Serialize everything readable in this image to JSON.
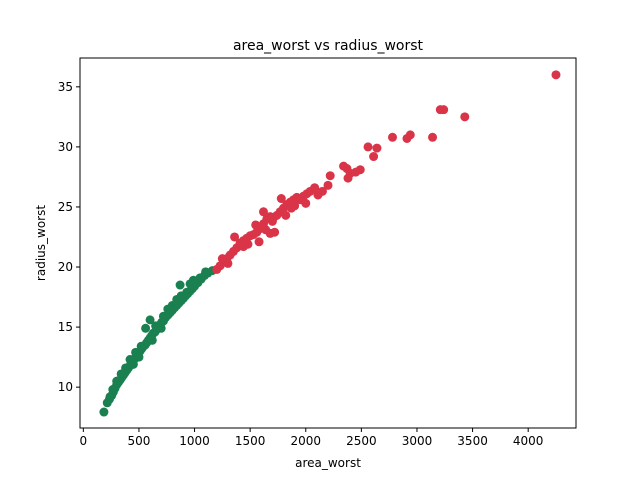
{
  "chart_data": {
    "type": "scatter",
    "title": "area_worst vs radius_worst",
    "xlabel": "area_worst",
    "ylabel": "radius_worst",
    "xlim": [
      -30,
      4430
    ],
    "ylim": [
      6.6,
      37.4
    ],
    "xticks": [
      0,
      500,
      1000,
      1500,
      2000,
      2500,
      3000,
      3500,
      4000
    ],
    "yticks": [
      10,
      15,
      20,
      25,
      30,
      35
    ],
    "grid": false,
    "legend": "none",
    "series": [
      {
        "color": "#1a8050",
        "points": [
          [
            185,
            7.93
          ],
          [
            215,
            8.7
          ],
          [
            235,
            9.0
          ],
          [
            255,
            9.3
          ],
          [
            270,
            9.6
          ],
          [
            285,
            9.9
          ],
          [
            300,
            10.2
          ],
          [
            315,
            10.4
          ],
          [
            330,
            10.6
          ],
          [
            345,
            10.8
          ],
          [
            360,
            11.0
          ],
          [
            375,
            11.2
          ],
          [
            390,
            11.4
          ],
          [
            405,
            11.6
          ],
          [
            420,
            11.8
          ],
          [
            435,
            12.0
          ],
          [
            450,
            12.2
          ],
          [
            465,
            12.4
          ],
          [
            480,
            12.6
          ],
          [
            495,
            12.8
          ],
          [
            510,
            13.0
          ],
          [
            525,
            13.2
          ],
          [
            540,
            13.4
          ],
          [
            555,
            13.5
          ],
          [
            570,
            13.7
          ],
          [
            585,
            13.9
          ],
          [
            600,
            14.1
          ],
          [
            615,
            14.3
          ],
          [
            630,
            14.5
          ],
          [
            645,
            14.6
          ],
          [
            660,
            14.8
          ],
          [
            675,
            15.0
          ],
          [
            690,
            15.2
          ],
          [
            705,
            15.4
          ],
          [
            720,
            15.5
          ],
          [
            740,
            15.8
          ],
          [
            760,
            16.0
          ],
          [
            780,
            16.2
          ],
          [
            800,
            16.4
          ],
          [
            820,
            16.6
          ],
          [
            840,
            16.8
          ],
          [
            860,
            17.0
          ],
          [
            880,
            17.2
          ],
          [
            900,
            17.4
          ],
          [
            920,
            17.6
          ],
          [
            940,
            17.8
          ],
          [
            960,
            18.0
          ],
          [
            980,
            18.2
          ],
          [
            1000,
            18.4
          ],
          [
            1030,
            18.7
          ],
          [
            1060,
            19.0
          ],
          [
            1090,
            19.3
          ],
          [
            1120,
            19.5
          ],
          [
            1160,
            19.7
          ],
          [
            1100,
            19.6
          ],
          [
            1050,
            19.1
          ],
          [
            960,
            18.6
          ],
          [
            880,
            17.6
          ],
          [
            800,
            16.8
          ],
          [
            720,
            15.9
          ],
          [
            650,
            15.1
          ],
          [
            600,
            15.6
          ],
          [
            560,
            14.9
          ],
          [
            520,
            13.4
          ],
          [
            470,
            12.9
          ],
          [
            420,
            12.3
          ],
          [
            380,
            11.6
          ],
          [
            340,
            11.1
          ],
          [
            300,
            10.5
          ],
          [
            265,
            9.8
          ],
          [
            240,
            9.2
          ],
          [
            870,
            18.5
          ],
          [
            930,
            17.9
          ],
          [
            990,
            18.9
          ],
          [
            620,
            13.9
          ],
          [
            700,
            14.9
          ],
          [
            760,
            16.5
          ],
          [
            840,
            17.3
          ],
          [
            500,
            12.5
          ],
          [
            450,
            11.9
          ]
        ]
      },
      {
        "color": "#d93448",
        "points": [
          [
            1200,
            19.8
          ],
          [
            1230,
            20.1
          ],
          [
            1260,
            20.4
          ],
          [
            1290,
            20.7
          ],
          [
            1320,
            21.0
          ],
          [
            1350,
            21.3
          ],
          [
            1380,
            21.6
          ],
          [
            1410,
            22.0
          ],
          [
            1440,
            22.2
          ],
          [
            1470,
            22.4
          ],
          [
            1500,
            22.6
          ],
          [
            1530,
            22.7
          ],
          [
            1560,
            22.9
          ],
          [
            1590,
            23.2
          ],
          [
            1620,
            23.6
          ],
          [
            1650,
            24.0
          ],
          [
            1680,
            24.2
          ],
          [
            1710,
            24.1
          ],
          [
            1740,
            24.3
          ],
          [
            1770,
            24.6
          ],
          [
            1800,
            24.9
          ],
          [
            1830,
            25.2
          ],
          [
            1860,
            25.4
          ],
          [
            1890,
            25.6
          ],
          [
            1920,
            25.8
          ],
          [
            1950,
            25.6
          ],
          [
            1980,
            25.9
          ],
          [
            2010,
            26.1
          ],
          [
            2040,
            26.3
          ],
          [
            2080,
            26.6
          ],
          [
            2110,
            26.0
          ],
          [
            2150,
            26.3
          ],
          [
            2200,
            26.8
          ],
          [
            2220,
            27.6
          ],
          [
            2340,
            28.4
          ],
          [
            2370,
            28.2
          ],
          [
            2400,
            27.8
          ],
          [
            2380,
            27.4
          ],
          [
            2450,
            27.9
          ],
          [
            2490,
            28.1
          ],
          [
            2560,
            30.0
          ],
          [
            2610,
            29.2
          ],
          [
            2640,
            29.9
          ],
          [
            2780,
            30.8
          ],
          [
            2910,
            30.7
          ],
          [
            2940,
            31.0
          ],
          [
            3140,
            30.8
          ],
          [
            3210,
            33.1
          ],
          [
            3240,
            33.1
          ],
          [
            3430,
            32.5
          ],
          [
            4250,
            36.0
          ],
          [
            1360,
            22.5
          ],
          [
            1440,
            21.7
          ],
          [
            1620,
            24.6
          ],
          [
            1700,
            23.8
          ],
          [
            1780,
            25.7
          ],
          [
            1820,
            24.3
          ],
          [
            1900,
            25.1
          ],
          [
            2000,
            25.3
          ],
          [
            1580,
            22.1
          ],
          [
            1680,
            22.8
          ],
          [
            1550,
            23.5
          ],
          [
            1250,
            20.7
          ],
          [
            1300,
            20.3
          ],
          [
            1640,
            23.1
          ],
          [
            1720,
            22.9
          ],
          [
            1480,
            21.9
          ],
          [
            1870,
            24.9
          ]
        ]
      }
    ]
  }
}
